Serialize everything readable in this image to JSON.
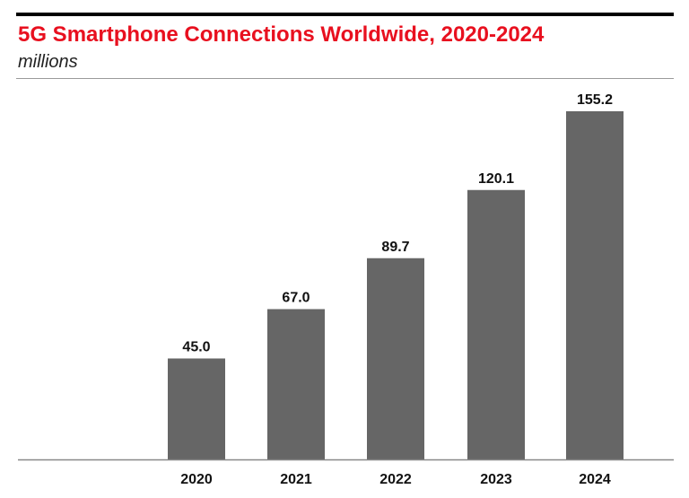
{
  "chart_data": {
    "type": "bar",
    "title": "5G Smartphone Connections Worldwide, 2020-2024",
    "subtitle": "millions",
    "categories": [
      "2020",
      "2021",
      "2022",
      "2023",
      "2024"
    ],
    "values": [
      45.0,
      67.0,
      89.7,
      120.1,
      155.2
    ],
    "value_labels": [
      "45.0",
      "67.0",
      "89.7",
      "120.1",
      "155.2"
    ],
    "xlabel": "",
    "ylabel": "",
    "ylim": [
      0,
      170
    ],
    "grid": false,
    "legend": "none",
    "colors": {
      "title": "#e8101f",
      "bar": "#666666",
      "axis": "#888888",
      "text": "#111111"
    }
  }
}
